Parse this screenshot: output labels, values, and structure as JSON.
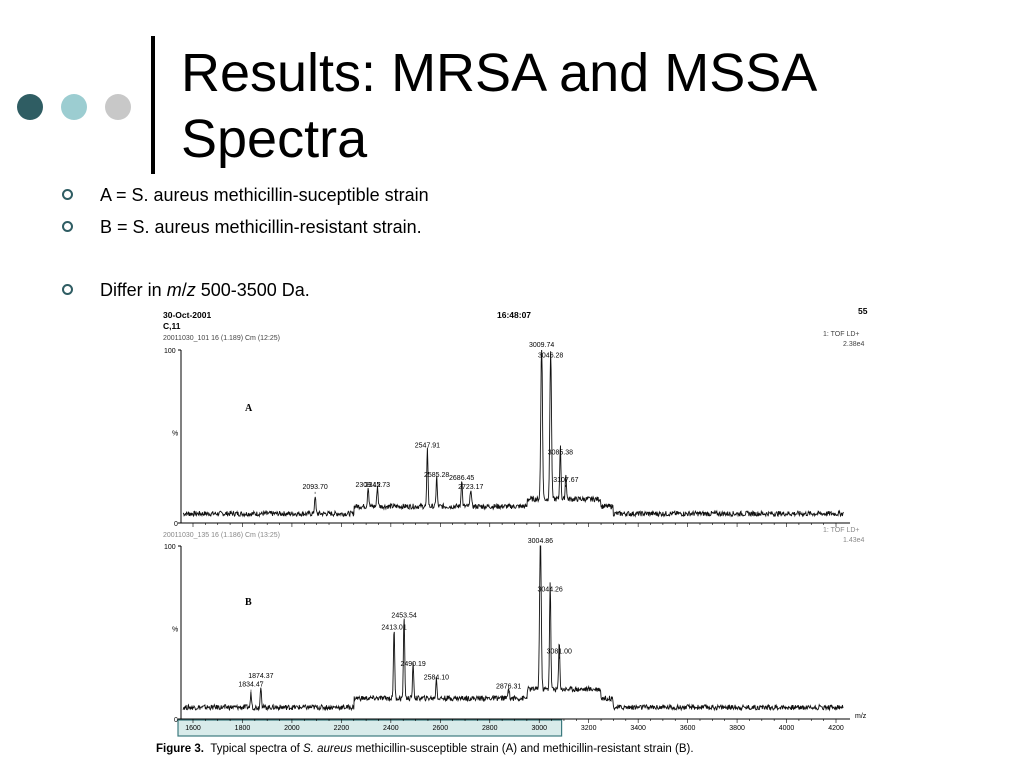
{
  "slide": {
    "title_line1": "Results: MRSA and MSSA",
    "title_line2": "Spectra",
    "bullets": [
      {
        "pre": "A = S. aureus methicillin-suceptible strain"
      },
      {
        "pre": "B = S. aureus methicillin-resistant strain."
      },
      {
        "pre": "Differ in ",
        "em1": "m",
        "mid": "/",
        "em2": "z",
        "post": " 500-3500 Da."
      }
    ],
    "colors": {
      "dark_teal": "#2f5d63",
      "light_teal": "#9ccdd1",
      "grey": "#c8c8c8"
    }
  },
  "figure": {
    "header": {
      "date": "30-Oct-2001",
      "sample": "C,11",
      "time": "16:48:07",
      "page": "55",
      "file_a": "20011030_101 16 (1.189) Cm (12:25)",
      "file_b": "20011030_135 16 (1.186) Cm (13:25)",
      "mode_a": "1: TOF LD+",
      "intensity_a": "2.38e4",
      "mode_b": "1: TOF LD+",
      "intensity_b": "1.43e4"
    },
    "caption_label": "Figure 3.",
    "caption_pre": "Typical spectra of ",
    "caption_em": "S. aureus",
    "caption_post": " methicillin-susceptible strain (A) and methicillin-resistant strain (B).",
    "highlight_color": "#d8ebea"
  },
  "chart_data": [
    {
      "type": "line",
      "panel": "A",
      "title": "A",
      "xlabel": "m/z",
      "ylabel": "%",
      "xlim": [
        1550,
        4250
      ],
      "ylim": [
        0,
        100
      ],
      "y_ticks": [
        "100",
        "%",
        "0"
      ],
      "x_ticks": [
        1600,
        1800,
        2000,
        2200,
        2400,
        2600,
        2800,
        3000,
        3200,
        3400,
        3600,
        3800,
        4000,
        4200
      ],
      "baseline": 12,
      "peaks": [
        {
          "x": 2093.7,
          "y": 18,
          "label": "2093.70"
        },
        {
          "x": 2308.12,
          "y": 19,
          "label": "2308.12"
        },
        {
          "x": 2345.73,
          "y": 19,
          "label": "2345.73"
        },
        {
          "x": 2547.91,
          "y": 42,
          "label": "2547.91"
        },
        {
          "x": 2585.28,
          "y": 25,
          "label": "2585.28"
        },
        {
          "x": 2686.45,
          "y": 23,
          "label": "2686.45"
        },
        {
          "x": 2723.17,
          "y": 18,
          "label": "2723.17"
        },
        {
          "x": 3009.74,
          "y": 100,
          "label": "3009.74"
        },
        {
          "x": 3046.28,
          "y": 94,
          "label": "3046.28"
        },
        {
          "x": 3085.38,
          "y": 38,
          "label": "3085.38"
        },
        {
          "x": 3107.67,
          "y": 22,
          "label": "3107.67"
        }
      ]
    },
    {
      "type": "line",
      "panel": "B",
      "title": "B",
      "xlabel": "m/z",
      "ylabel": "%",
      "xlim": [
        1550,
        4250
      ],
      "ylim": [
        0,
        100
      ],
      "y_ticks": [
        "100",
        "%",
        "0"
      ],
      "x_ticks": [
        1600,
        1800,
        2000,
        2200,
        2400,
        2600,
        2800,
        3000,
        3200,
        3400,
        3600,
        3800,
        4000,
        4200
      ],
      "baseline": 15,
      "peaks": [
        {
          "x": 1834.47,
          "y": 17,
          "label": "1834.47"
        },
        {
          "x": 1874.37,
          "y": 22,
          "label": "1874.37"
        },
        {
          "x": 2413.01,
          "y": 50,
          "label": "2413.01"
        },
        {
          "x": 2453.54,
          "y": 57,
          "label": "2453.54"
        },
        {
          "x": 2490.19,
          "y": 29,
          "label": "2490.19"
        },
        {
          "x": 2584.1,
          "y": 21,
          "label": "2584.10"
        },
        {
          "x": 2876.31,
          "y": 16,
          "label": "2876.31"
        },
        {
          "x": 3004.86,
          "y": 100,
          "label": "3004.86"
        },
        {
          "x": 3044.26,
          "y": 72,
          "label": "3044.26"
        },
        {
          "x": 3081.0,
          "y": 36,
          "label": "3081.00"
        }
      ],
      "highlight_range": [
        1550,
        3050
      ]
    }
  ]
}
